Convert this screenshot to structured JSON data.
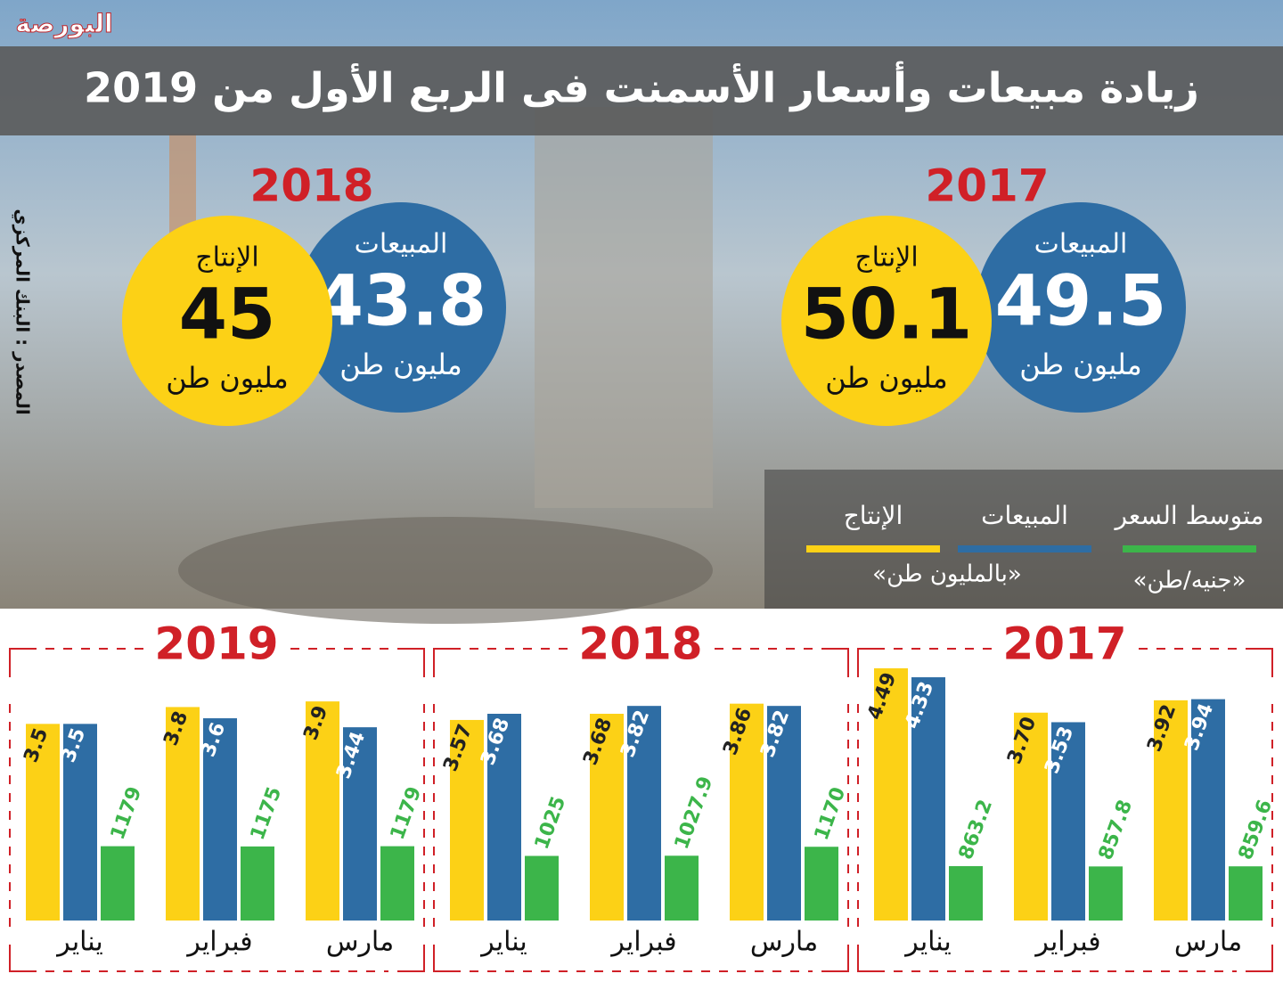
{
  "header": {
    "logo": "البورصة",
    "title": "زيادة مبيعات وأسعار الأسمنت فى الربع الأول من 2019"
  },
  "source": "المصدر : البنك المركزي",
  "summary": [
    {
      "year": "2017",
      "items": [
        {
          "label": "المبيعات",
          "value": 49.5,
          "unit": "مليون طن"
        },
        {
          "label": "الإنتاج",
          "value": 50.1,
          "unit": "مليون طن"
        }
      ]
    },
    {
      "year": "2018",
      "items": [
        {
          "label": "المبيعات",
          "value": 43.8,
          "unit": "مليون طن"
        },
        {
          "label": "الإنتاج",
          "value": 45,
          "unit": "مليون طن"
        }
      ]
    }
  ],
  "legend": {
    "items": [
      {
        "name": "متوسط السعر",
        "color": "#3cb54a"
      },
      {
        "name": "المبيعات",
        "color": "#2e6da4"
      },
      {
        "name": "الإنتاج",
        "color": "#fcd116"
      }
    ],
    "units": [
      "«جنيه/طن»",
      "«بالمليون طن»"
    ]
  },
  "chart_data": [
    {
      "type": "bar",
      "title": "2017",
      "categories": [
        "يناير",
        "فبراير",
        "مارس"
      ],
      "ylim": [
        0,
        4.6
      ],
      "y2lim": [
        0,
        4100
      ],
      "series": [
        {
          "color": "#fcd116",
          "values": [
            4.49,
            3.7,
            3.92
          ],
          "value_labels": [
            "4.49",
            "3.70",
            "3.92"
          ]
        },
        {
          "color": "#2e6da4",
          "values": [
            4.33,
            3.53,
            3.94
          ]
        },
        {
          "color": "#3cb54a",
          "axis": "y2",
          "values": [
            863.2,
            857.8,
            859.6
          ]
        }
      ]
    },
    {
      "type": "bar",
      "title": "2018",
      "categories": [
        "يناير",
        "فبراير",
        "مارس"
      ],
      "ylim": [
        0,
        4.6
      ],
      "y2lim": [
        0,
        4100
      ],
      "series": [
        {
          "color": "#fcd116",
          "values": [
            3.57,
            3.68,
            3.86
          ]
        },
        {
          "color": "#2e6da4",
          "values": [
            3.68,
            3.82,
            3.82
          ]
        },
        {
          "color": "#3cb54a",
          "axis": "y2",
          "values": [
            1025,
            1027.9,
            1170
          ]
        }
      ]
    },
    {
      "type": "bar",
      "title": "2019",
      "categories": [
        "يناير",
        "فبراير",
        "مارس"
      ],
      "ylim": [
        0,
        4.6
      ],
      "y2lim": [
        0,
        4100
      ],
      "series": [
        {
          "color": "#fcd116",
          "values": [
            3.5,
            3.8,
            3.9
          ]
        },
        {
          "color": "#2e6da4",
          "values": [
            3.5,
            3.6,
            3.44
          ]
        },
        {
          "color": "#3cb54a",
          "axis": "y2",
          "values": [
            1179,
            1175,
            1179
          ]
        }
      ]
    }
  ]
}
